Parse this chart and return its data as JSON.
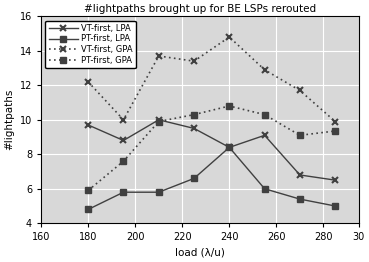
{
  "title": "#lightpaths brought up for BE LSPs rerouted",
  "xlabel": "load (λ/u)",
  "ylabel": "#lightpaths",
  "x": [
    180,
    195,
    210,
    225,
    240,
    255,
    270,
    285
  ],
  "vt_lpa": [
    9.7,
    8.8,
    10.0,
    9.5,
    8.4,
    9.1,
    6.8,
    6.5
  ],
  "pt_lpa": [
    4.8,
    5.8,
    5.8,
    6.6,
    8.4,
    6.0,
    5.4,
    5.0
  ],
  "vt_gpa": [
    12.2,
    10.0,
    13.7,
    13.4,
    14.8,
    12.9,
    11.7,
    9.9
  ],
  "pt_gpa": [
    5.9,
    7.6,
    9.9,
    10.3,
    10.8,
    10.3,
    9.1,
    9.35
  ],
  "xlim": [
    160,
    295
  ],
  "ylim": [
    4,
    16
  ],
  "yticks": [
    4,
    6,
    8,
    10,
    12,
    14,
    16
  ],
  "xticks": [
    160,
    180,
    200,
    220,
    240,
    260,
    280
  ],
  "xticklabels": [
    "160",
    "180",
    "200",
    "220",
    "240",
    "260",
    "280"
  ],
  "extra_xtick": 295,
  "extra_xtick_label": "30",
  "bg_color": "#d8d8d8",
  "grid_color": "#ffffff"
}
